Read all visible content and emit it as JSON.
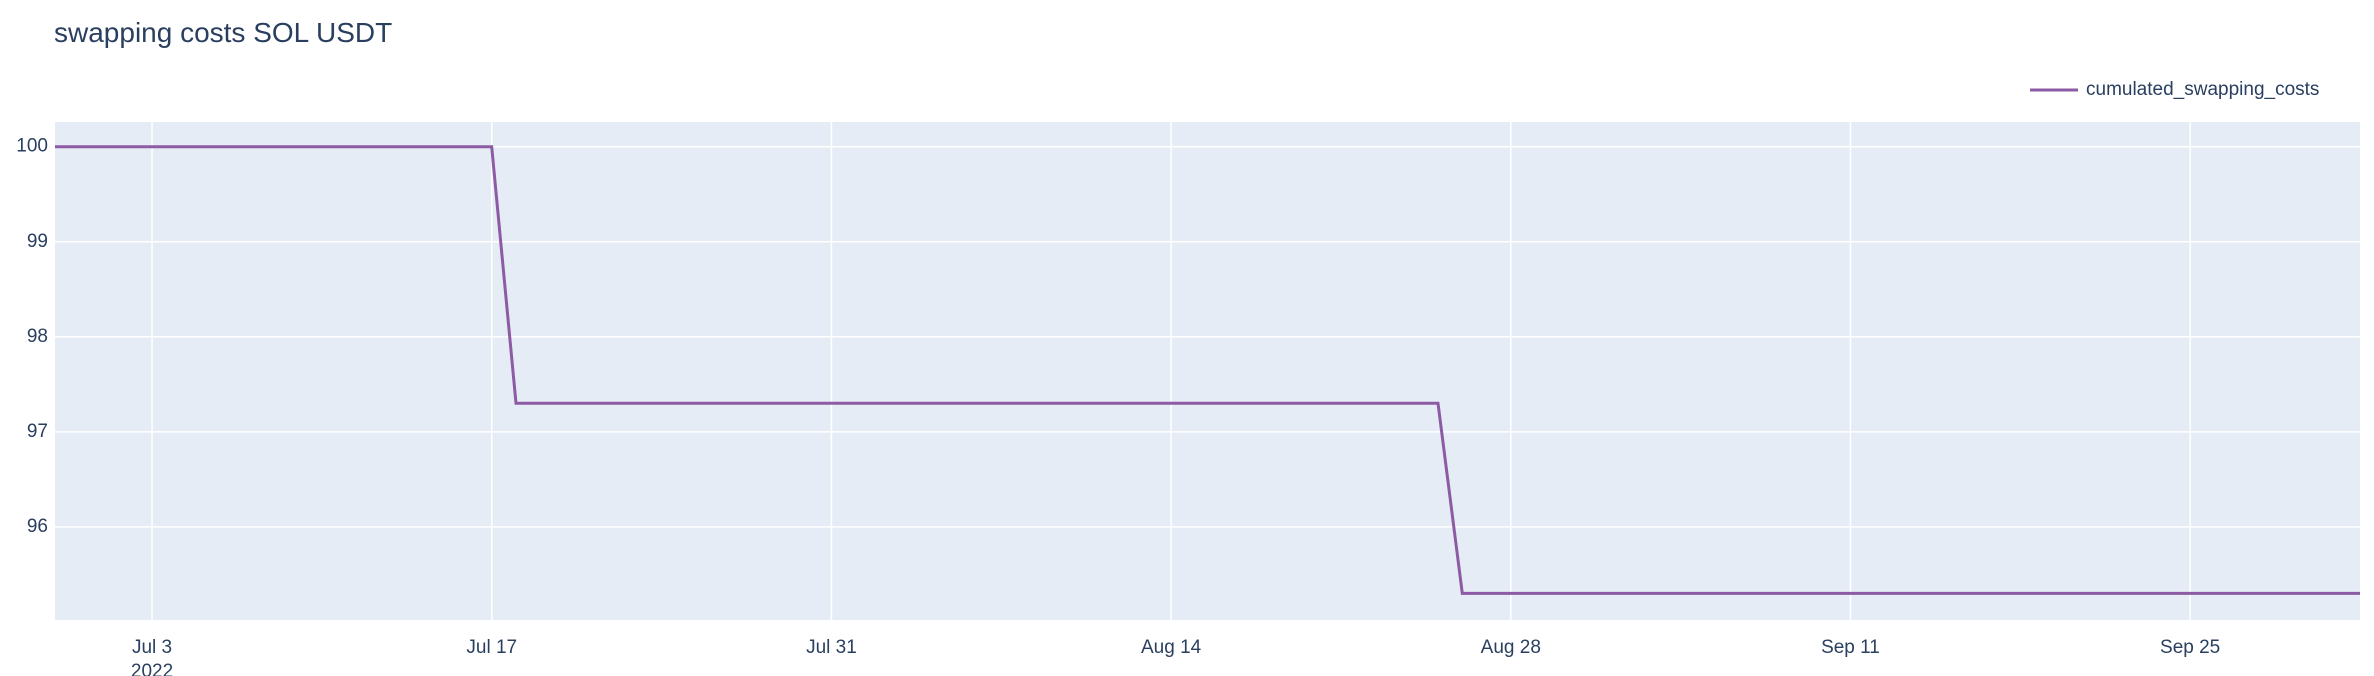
{
  "chart_data": {
    "type": "line",
    "title": "swapping costs SOL USDT",
    "xlabel": "",
    "ylabel": "",
    "x_range": [
      "2022-06-29",
      "2022-10-02"
    ],
    "ylim": [
      95.02,
      100.26
    ],
    "x_ticks": [
      {
        "date": "2022-07-03",
        "label": "Jul 3",
        "sublabel": "2022"
      },
      {
        "date": "2022-07-17",
        "label": "Jul 17"
      },
      {
        "date": "2022-07-31",
        "label": "Jul 31"
      },
      {
        "date": "2022-08-14",
        "label": "Aug 14"
      },
      {
        "date": "2022-08-28",
        "label": "Aug 28"
      },
      {
        "date": "2022-09-11",
        "label": "Sep 11"
      },
      {
        "date": "2022-09-25",
        "label": "Sep 25"
      }
    ],
    "y_ticks": [
      96,
      97,
      98,
      99,
      100
    ],
    "grid": true,
    "legend_position": "top-right",
    "series": [
      {
        "name": "cumulated_swapping_costs",
        "color": "#8d5ba4",
        "points": [
          {
            "x": "2022-06-29",
            "y": 100
          },
          {
            "x": "2022-07-17",
            "y": 100
          },
          {
            "x": "2022-07-18",
            "y": 97.3
          },
          {
            "x": "2022-08-25",
            "y": 97.3
          },
          {
            "x": "2022-08-26",
            "y": 95.3
          },
          {
            "x": "2022-10-02",
            "y": 95.3
          }
        ]
      }
    ]
  },
  "colors": {
    "plot_background": "#e5ecf6",
    "grid": "#ffffff",
    "text": "#2a3f5f"
  }
}
